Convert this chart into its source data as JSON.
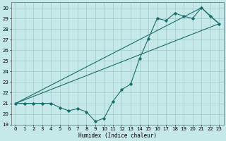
{
  "xlabel": "Humidex (Indice chaleur)",
  "background_color": "#c5e8e8",
  "grid_color": "#a0c8c8",
  "line_color": "#1a6e6a",
  "xlim": [
    -0.5,
    23.5
  ],
  "ylim": [
    19,
    30.5
  ],
  "yticks": [
    19,
    20,
    21,
    22,
    23,
    24,
    25,
    26,
    27,
    28,
    29,
    30
  ],
  "xticks": [
    0,
    1,
    2,
    3,
    4,
    5,
    6,
    7,
    8,
    9,
    10,
    11,
    12,
    13,
    14,
    15,
    16,
    17,
    18,
    19,
    20,
    21,
    22,
    23
  ],
  "line1_x": [
    0,
    1,
    2,
    3,
    4,
    5,
    6,
    7,
    8,
    9,
    10,
    11,
    12,
    13,
    14,
    15,
    16,
    17,
    18,
    19,
    20,
    21,
    22,
    23
  ],
  "line1_y": [
    21.0,
    21.0,
    21.0,
    21.0,
    21.0,
    20.6,
    20.3,
    20.5,
    20.2,
    19.3,
    19.6,
    21.2,
    22.3,
    22.8,
    25.2,
    27.1,
    29.0,
    28.8,
    29.5,
    29.2,
    29.0,
    30.0,
    29.2,
    28.5
  ],
  "line2_x": [
    0,
    21,
    23
  ],
  "line2_y": [
    21.0,
    30.0,
    28.5
  ],
  "line3_x": [
    0,
    23
  ],
  "line3_y": [
    21.0,
    28.5
  ]
}
